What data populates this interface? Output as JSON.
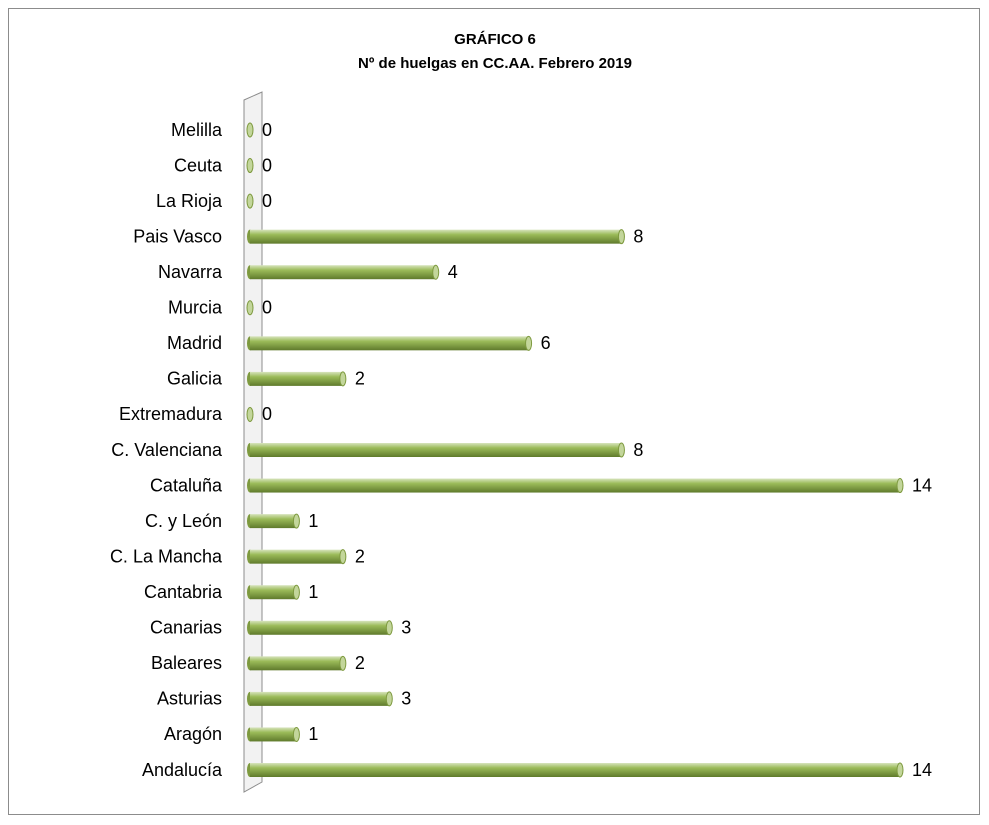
{
  "chart_data": {
    "type": "bar",
    "orientation": "horizontal",
    "title": "GRÁFICO 6",
    "subtitle": "Nº de huelgas en CC.AA. Febrero 2019",
    "categories": [
      "Andalucía",
      "Aragón",
      "Asturias",
      "Baleares",
      "Canarias",
      "Cantabria",
      "C. La Mancha",
      "C. y León",
      "Cataluña",
      "C. Valenciana",
      "Extremadura",
      "Galicia",
      "Madrid",
      "Murcia",
      "Navarra",
      "Pais Vasco",
      "La Rioja",
      "Ceuta",
      "Melilla"
    ],
    "values": [
      14,
      1,
      3,
      2,
      3,
      1,
      2,
      1,
      14,
      8,
      0,
      2,
      6,
      0,
      4,
      8,
      0,
      0,
      0
    ],
    "color": "#9bbb59"
  }
}
